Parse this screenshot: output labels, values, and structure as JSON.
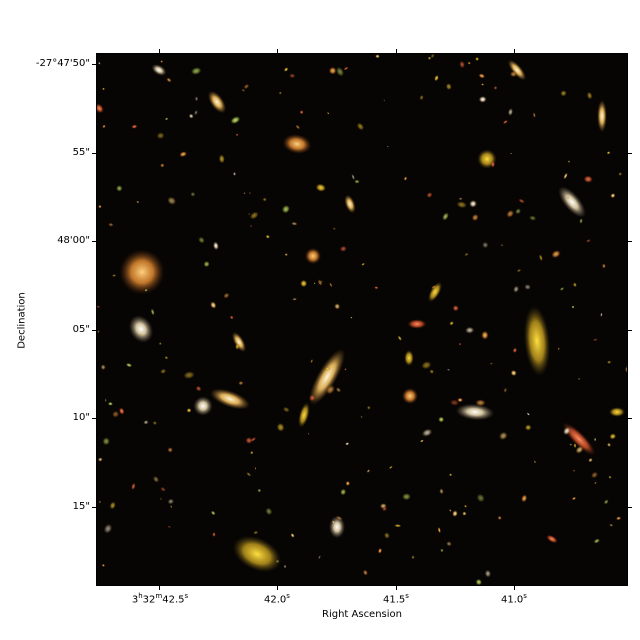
{
  "axes": {
    "xlabel": "Right Ascension",
    "ylabel": "Declination",
    "yticks": [
      "-27°47'50\"",
      "55\"",
      "48'00\"",
      "05\"",
      "10\"",
      "15\""
    ],
    "xticks": [
      {
        "h": "3",
        "hu": "h",
        "m": "32",
        "mu": "m",
        "s": "42.5",
        "su": "s"
      },
      {
        "s": "42.0",
        "su": "s"
      },
      {
        "s": "41.5",
        "su": "s"
      },
      {
        "s": "41.0",
        "su": "s"
      }
    ]
  },
  "image": {
    "subject": "deep-field galaxies",
    "background_color": "#070503",
    "colors": [
      "#f5d27a",
      "#e8a84a",
      "#ff8a3c",
      "#fff2d0",
      "#d86a3a",
      "#b8c86a",
      "#ffcf40",
      "#e05a3a"
    ]
  }
}
